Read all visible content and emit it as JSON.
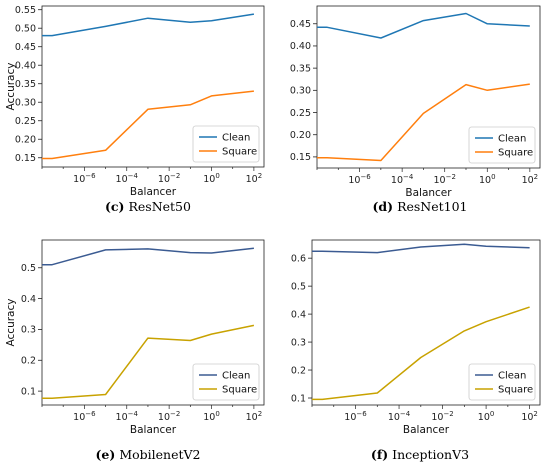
{
  "chart_data": [
    {
      "type": "line",
      "caption_letter": "(c)",
      "caption_title": "ResNet50",
      "xlabel": "Balancer",
      "ylabel": "Accuracy",
      "x_scale": "log",
      "x": [
        1e-08,
        3e-08,
        1e-05,
        0.001,
        0.1,
        1,
        100
      ],
      "xlim": [
        1e-08,
        300
      ],
      "xticks": [
        {
          "value": 1e-06,
          "base": "10",
          "exp": "−6"
        },
        {
          "value": 0.0001,
          "base": "10",
          "exp": "−4"
        },
        {
          "value": 0.01,
          "base": "10",
          "exp": "−2"
        },
        {
          "value": 1,
          "base": "10",
          "exp": "0"
        },
        {
          "value": 100,
          "base": "10",
          "exp": "2"
        }
      ],
      "ylim": [
        0.125,
        0.56
      ],
      "yticks": [
        "0.15",
        "0.20",
        "0.25",
        "0.30",
        "0.35",
        "0.40",
        "0.45",
        "0.50",
        "0.55"
      ],
      "legend_placement": "lower-right",
      "series": [
        {
          "name": "Clean",
          "color": "#1f77b4",
          "values": [
            0.48,
            0.48,
            0.505,
            0.527,
            0.516,
            0.52,
            0.538
          ]
        },
        {
          "name": "Square",
          "color": "#ff7f0e",
          "values": [
            0.148,
            0.148,
            0.17,
            0.281,
            0.293,
            0.317,
            0.33
          ]
        }
      ]
    },
    {
      "type": "line",
      "caption_letter": "(d)",
      "caption_title": "ResNet101",
      "xlabel": "Balancer",
      "ylabel": "",
      "x_scale": "log",
      "x": [
        1e-08,
        3e-08,
        1e-05,
        0.001,
        0.1,
        1,
        100
      ],
      "xlim": [
        1e-08,
        300
      ],
      "xticks": [
        {
          "value": 1e-06,
          "base": "10",
          "exp": "−6"
        },
        {
          "value": 0.0001,
          "base": "10",
          "exp": "−4"
        },
        {
          "value": 0.01,
          "base": "10",
          "exp": "−2"
        },
        {
          "value": 1,
          "base": "10",
          "exp": "0"
        },
        {
          "value": 100,
          "base": "10",
          "exp": "2"
        }
      ],
      "ylim": [
        0.125,
        0.49
      ],
      "yticks": [
        "0.15",
        "0.20",
        "0.25",
        "0.30",
        "0.35",
        "0.40",
        "0.45"
      ],
      "legend_placement": "lower-right",
      "series": [
        {
          "name": "Clean",
          "color": "#1f77b4",
          "values": [
            0.442,
            0.442,
            0.418,
            0.457,
            0.473,
            0.45,
            0.445
          ]
        },
        {
          "name": "Square",
          "color": "#ff7f0e",
          "values": [
            0.148,
            0.148,
            0.142,
            0.248,
            0.313,
            0.3,
            0.314
          ]
        }
      ]
    },
    {
      "type": "line",
      "caption_letter": "(e)",
      "caption_title": "MobilenetV2",
      "xlabel": "Balancer",
      "ylabel": "Accuracy",
      "x_scale": "log",
      "x": [
        1e-08,
        3e-08,
        1e-05,
        0.001,
        0.1,
        1,
        100
      ],
      "xlim": [
        1e-08,
        300
      ],
      "xticks": [
        {
          "value": 1e-06,
          "base": "10",
          "exp": "−6"
        },
        {
          "value": 0.0001,
          "base": "10",
          "exp": "−4"
        },
        {
          "value": 0.01,
          "base": "10",
          "exp": "−2"
        },
        {
          "value": 1,
          "base": "10",
          "exp": "0"
        },
        {
          "value": 100,
          "base": "10",
          "exp": "2"
        }
      ],
      "ylim": [
        0.055,
        0.59
      ],
      "yticks": [
        "0.1",
        "0.2",
        "0.3",
        "0.4",
        "0.5"
      ],
      "legend_placement": "lower-right",
      "series": [
        {
          "name": "Clean",
          "color": "#3b5b92",
          "values": [
            0.51,
            0.51,
            0.558,
            0.561,
            0.549,
            0.548,
            0.563
          ]
        },
        {
          "name": "Square",
          "color": "#c8a200",
          "values": [
            0.077,
            0.077,
            0.089,
            0.272,
            0.264,
            0.285,
            0.313
          ]
        }
      ]
    },
    {
      "type": "line",
      "caption_letter": "(f)",
      "caption_title": "InceptionV3",
      "xlabel": "Balancer",
      "ylabel": "",
      "x_scale": "log",
      "x": [
        1e-08,
        3e-08,
        1e-05,
        0.001,
        0.1,
        1,
        100
      ],
      "xlim": [
        1e-08,
        300
      ],
      "xticks": [
        {
          "value": 1e-06,
          "base": "10",
          "exp": "−6"
        },
        {
          "value": 0.0001,
          "base": "10",
          "exp": "−4"
        },
        {
          "value": 0.01,
          "base": "10",
          "exp": "−2"
        },
        {
          "value": 1,
          "base": "10",
          "exp": "0"
        },
        {
          "value": 100,
          "base": "10",
          "exp": "2"
        }
      ],
      "ylim": [
        0.075,
        0.665
      ],
      "yticks": [
        "0.1",
        "0.2",
        "0.3",
        "0.4",
        "0.5",
        "0.6"
      ],
      "legend_placement": "lower-right",
      "series": [
        {
          "name": "Clean",
          "color": "#3b5b92",
          "values": [
            0.625,
            0.625,
            0.62,
            0.64,
            0.65,
            0.643,
            0.637
          ]
        },
        {
          "name": "Square",
          "color": "#c8a200",
          "values": [
            0.095,
            0.095,
            0.118,
            0.245,
            0.34,
            0.373,
            0.425
          ]
        }
      ]
    }
  ]
}
